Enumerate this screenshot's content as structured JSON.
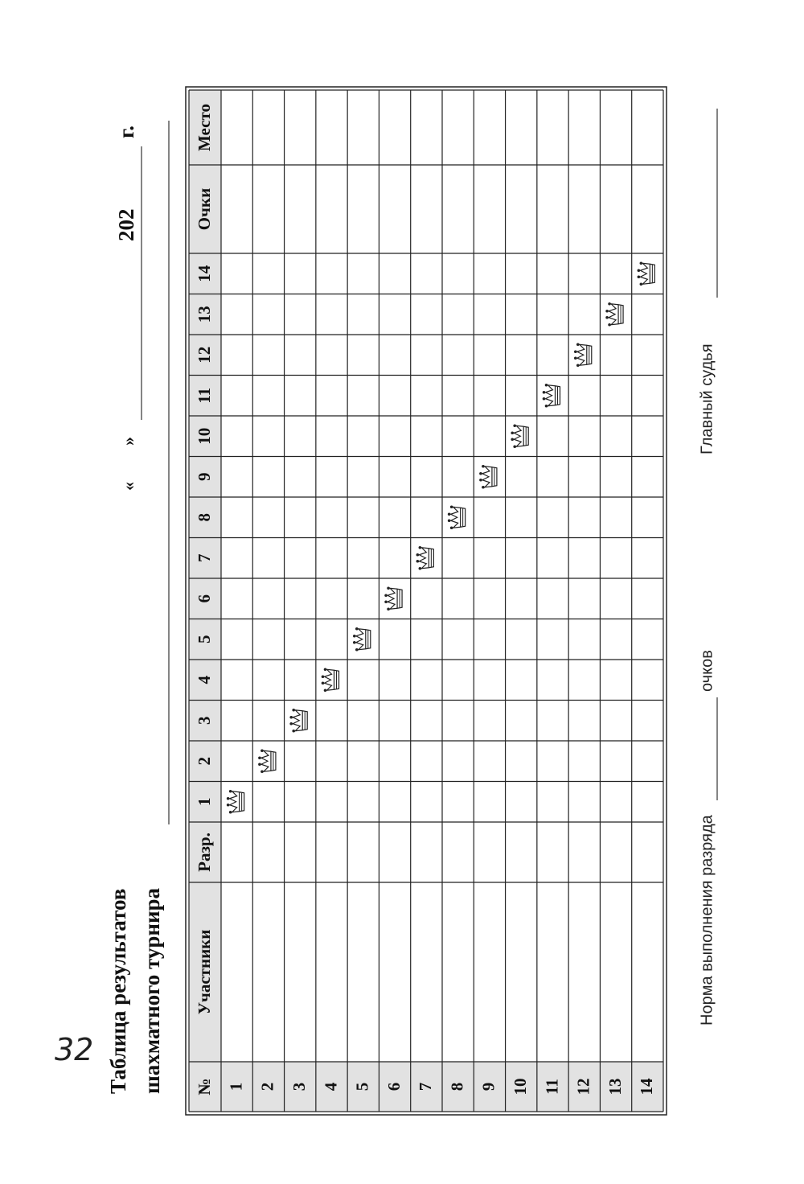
{
  "header": {
    "title_line1": "Таблица результатов",
    "title_line2": "шахматного турнира",
    "open_quote": "«",
    "close_quote": "»",
    "year_prefix": "202",
    "year_suffix": "г."
  },
  "table": {
    "columns": [
      "№",
      "Участники",
      "Разр.",
      "1",
      "2",
      "3",
      "4",
      "5",
      "6",
      "7",
      "8",
      "9",
      "10",
      "11",
      "12",
      "13",
      "14",
      "Очки",
      "Место"
    ],
    "rows": [
      "1",
      "2",
      "3",
      "4",
      "5",
      "6",
      "7",
      "8",
      "9",
      "10",
      "11",
      "12",
      "13",
      "14"
    ]
  },
  "footer": {
    "norm": "Норма выполнения разряда",
    "points": "очков",
    "judge": "Главный судья"
  },
  "page_number": "32"
}
